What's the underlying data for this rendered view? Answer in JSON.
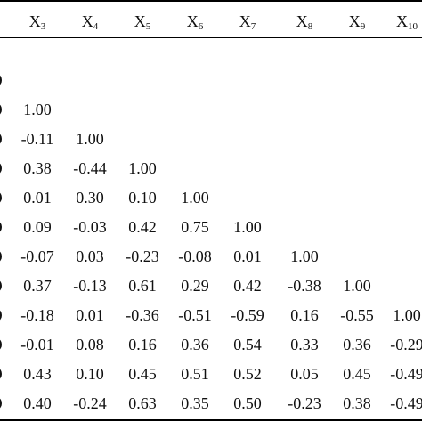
{
  "table": {
    "headers": [
      {
        "base": "X",
        "sub": "3"
      },
      {
        "base": "X",
        "sub": "4"
      },
      {
        "base": "X",
        "sub": "5"
      },
      {
        "base": "X",
        "sub": "6"
      },
      {
        "base": "X",
        "sub": "7"
      },
      {
        "base": "X",
        "sub": "8"
      },
      {
        "base": "X",
        "sub": "9"
      },
      {
        "base": "X",
        "sub": "10"
      }
    ],
    "rows": [
      [],
      [
        "1.00"
      ],
      [
        "-0.11",
        "1.00"
      ],
      [
        "0.38",
        "-0.44",
        "1.00"
      ],
      [
        "0.01",
        "0.30",
        "0.10",
        "1.00"
      ],
      [
        "0.09",
        "-0.03",
        "0.42",
        "0.75",
        "1.00"
      ],
      [
        "-0.07",
        "0.03",
        "-0.23",
        "-0.08",
        "0.01",
        "1.00"
      ],
      [
        "0.37",
        "-0.13",
        "0.61",
        "0.29",
        "0.42",
        "-0.38",
        "1.00"
      ],
      [
        "-0.18",
        "0.01",
        "-0.36",
        "-0.51",
        "-0.59",
        "0.16",
        "-0.55",
        "1.00"
      ],
      [
        "-0.01",
        "0.08",
        "0.16",
        "0.36",
        "0.54",
        "0.33",
        "0.36",
        "-0.29"
      ],
      [
        "0.43",
        "0.10",
        "0.45",
        "0.51",
        "0.52",
        "0.05",
        "0.45",
        "-0.49"
      ],
      [
        "0.40",
        "-0.24",
        "0.63",
        "0.35",
        "0.50",
        "-0.23",
        "0.38",
        "-0.49"
      ]
    ]
  }
}
